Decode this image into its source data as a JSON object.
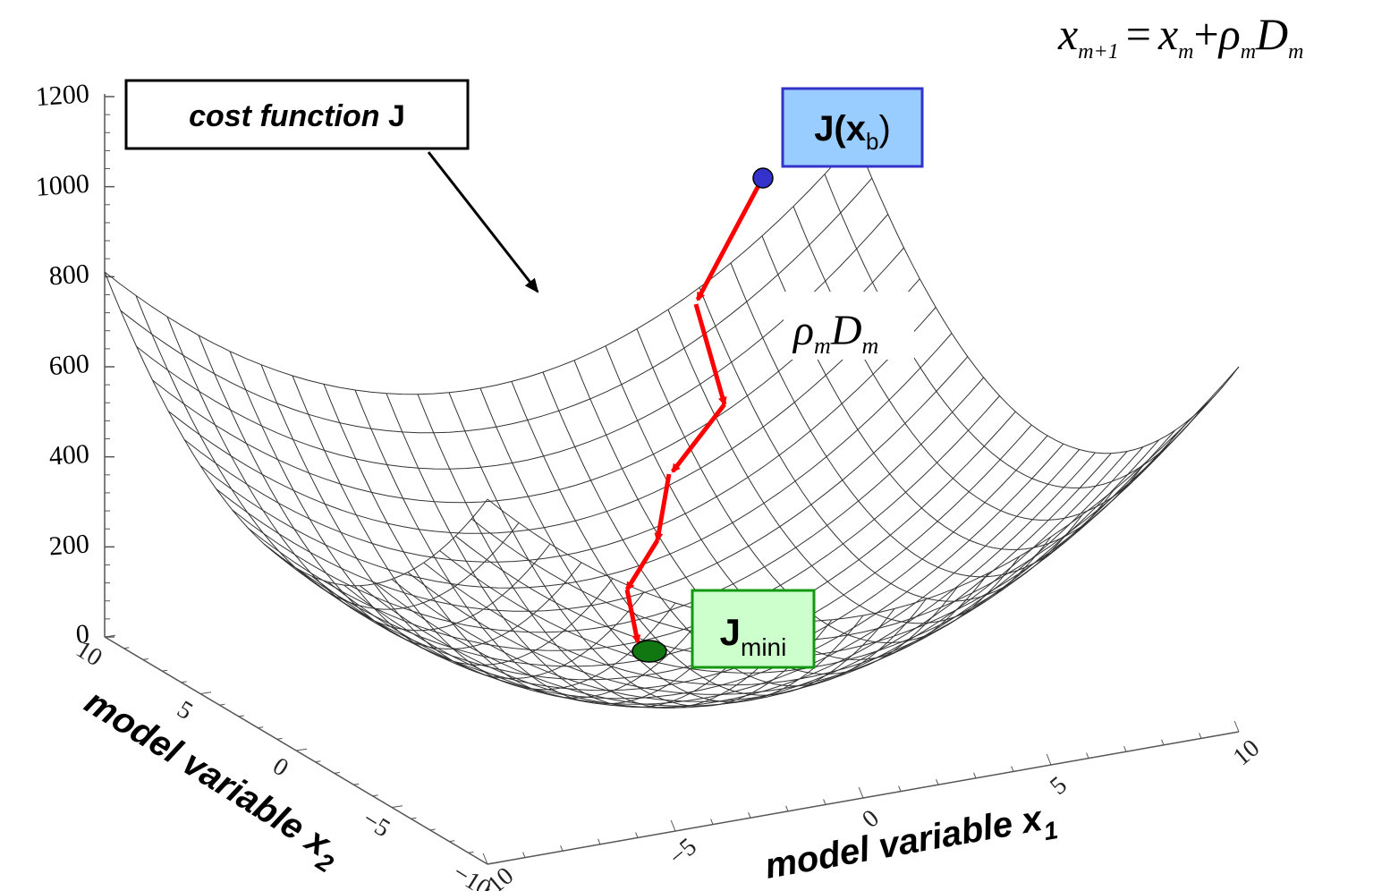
{
  "equation": {
    "lhs_var": "x",
    "lhs_sub": "m+1",
    "equals": "=",
    "term1_var": "x",
    "term1_sub": "m",
    "plus": "+",
    "rho": "ρ",
    "rho_sub": "m",
    "d_var": "D",
    "d_sub": "m"
  },
  "labels": {
    "cost_function_italic": "cost function",
    "cost_function_J": "J",
    "jxb_main": "J(",
    "jxb_x": "x",
    "jxb_sub": "b",
    "jxb_close": ")",
    "jmini_main": "J",
    "jmini_sub": "mini",
    "step_rho": "ρ",
    "step_rho_sub": "m",
    "step_d": "D",
    "step_d_sub": "m",
    "axis_x1_text": "model variable x",
    "axis_x1_sub": "1",
    "axis_x2_text": "model variable x",
    "axis_x2_sub": "2"
  },
  "z_ticks": [
    "0",
    "200",
    "400",
    "600",
    "800",
    "1000",
    "1200"
  ],
  "x1_ticks": [
    "−10",
    "−5",
    "0",
    "5",
    "10"
  ],
  "x2_ticks": [
    "10",
    "5",
    "0",
    "−5",
    "−10"
  ],
  "colors": {
    "mesh": "#333333",
    "path": "#ff0000",
    "start_point": "#3333cc",
    "end_point": "#117711",
    "jxb_box_fill": "#99ccff",
    "jxb_box_border": "#3333cc",
    "jmini_box_fill": "#ccffcc",
    "jmini_box_border": "#119911"
  }
}
